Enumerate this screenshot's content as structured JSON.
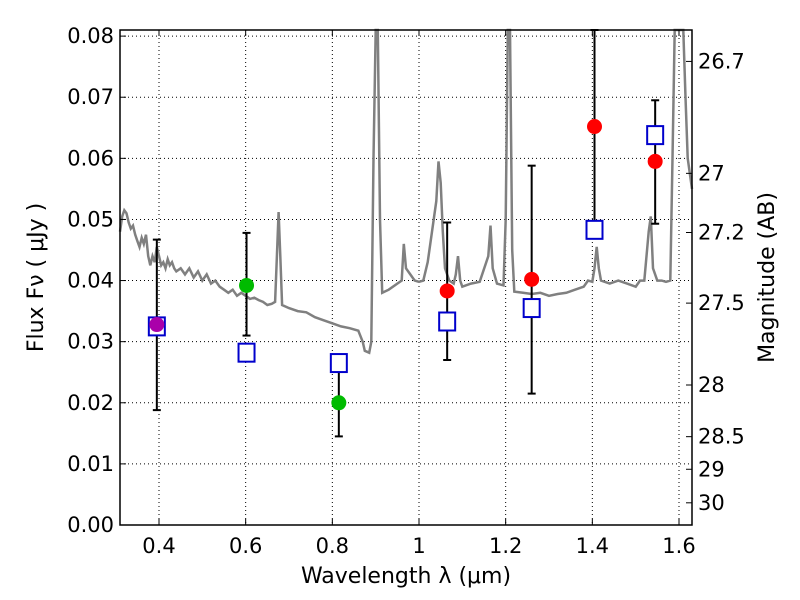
{
  "chart_data": {
    "type": "scatter",
    "xlabel": "Wavelength  λ (μm)",
    "ylabel": "Flux  Fν  ( μJy )",
    "y2label": "Magnitude (AB)",
    "xlim": [
      0.31,
      1.63
    ],
    "ylim": [
      0.0,
      0.081
    ],
    "grid": true,
    "x_ticks": [
      {
        "value": 0.4,
        "label": "0.4"
      },
      {
        "value": 0.6,
        "label": "0.6"
      },
      {
        "value": 0.8,
        "label": "0.8"
      },
      {
        "value": 1.0,
        "label": "1"
      },
      {
        "value": 1.2,
        "label": "1.2"
      },
      {
        "value": 1.4,
        "label": "1.4"
      },
      {
        "value": 1.6,
        "label": "1.6"
      }
    ],
    "y_ticks": [
      {
        "value": 0.0,
        "label": "0.00"
      },
      {
        "value": 0.01,
        "label": "0.01"
      },
      {
        "value": 0.02,
        "label": "0.02"
      },
      {
        "value": 0.03,
        "label": "0.03"
      },
      {
        "value": 0.04,
        "label": "0.04"
      },
      {
        "value": 0.05,
        "label": "0.05"
      },
      {
        "value": 0.06,
        "label": "0.06"
      },
      {
        "value": 0.07,
        "label": "0.07"
      },
      {
        "value": 0.08,
        "label": "0.08"
      }
    ],
    "y2_ticks": [
      {
        "value": 26.7,
        "label": "26.7"
      },
      {
        "value": 27.0,
        "label": "27"
      },
      {
        "value": 27.2,
        "label": "27.2"
      },
      {
        "value": 27.5,
        "label": "27.5"
      },
      {
        "value": 28.0,
        "label": "28"
      },
      {
        "value": 28.5,
        "label": "28.5"
      },
      {
        "value": 29.0,
        "label": "29"
      },
      {
        "value": 30.0,
        "label": "30"
      }
    ],
    "model_spectrum": {
      "color": "#808080",
      "points": [
        [
          0.31,
          0.048
        ],
        [
          0.315,
          0.0505
        ],
        [
          0.32,
          0.0515
        ],
        [
          0.325,
          0.051
        ],
        [
          0.33,
          0.0495
        ],
        [
          0.335,
          0.0485
        ],
        [
          0.34,
          0.049
        ],
        [
          0.345,
          0.0475
        ],
        [
          0.35,
          0.0465
        ],
        [
          0.355,
          0.0455
        ],
        [
          0.36,
          0.047
        ],
        [
          0.365,
          0.046
        ],
        [
          0.37,
          0.0475
        ],
        [
          0.375,
          0.044
        ],
        [
          0.38,
          0.0425
        ],
        [
          0.385,
          0.044
        ],
        [
          0.39,
          0.043
        ],
        [
          0.395,
          0.0455
        ],
        [
          0.4,
          0.044
        ],
        [
          0.405,
          0.0425
        ],
        [
          0.41,
          0.043
        ],
        [
          0.415,
          0.042
        ],
        [
          0.42,
          0.0435
        ],
        [
          0.425,
          0.0425
        ],
        [
          0.43,
          0.043
        ],
        [
          0.435,
          0.042
        ],
        [
          0.44,
          0.0415
        ],
        [
          0.45,
          0.042
        ],
        [
          0.46,
          0.041
        ],
        [
          0.47,
          0.042
        ],
        [
          0.48,
          0.0405
        ],
        [
          0.49,
          0.0415
        ],
        [
          0.5,
          0.04
        ],
        [
          0.51,
          0.041
        ],
        [
          0.52,
          0.0395
        ],
        [
          0.53,
          0.04
        ],
        [
          0.54,
          0.039
        ],
        [
          0.55,
          0.0385
        ],
        [
          0.56,
          0.038
        ],
        [
          0.57,
          0.0385
        ],
        [
          0.58,
          0.0375
        ],
        [
          0.59,
          0.038
        ],
        [
          0.6,
          0.0375
        ],
        [
          0.61,
          0.037
        ],
        [
          0.62,
          0.0372
        ],
        [
          0.63,
          0.0368
        ],
        [
          0.64,
          0.0365
        ],
        [
          0.65,
          0.036
        ],
        [
          0.66,
          0.0362
        ],
        [
          0.668,
          0.0365
        ],
        [
          0.672,
          0.044
        ],
        [
          0.676,
          0.0512
        ],
        [
          0.68,
          0.044
        ],
        [
          0.684,
          0.036
        ],
        [
          0.7,
          0.0355
        ],
        [
          0.72,
          0.035
        ],
        [
          0.74,
          0.0348
        ],
        [
          0.76,
          0.034
        ],
        [
          0.78,
          0.0335
        ],
        [
          0.8,
          0.033
        ],
        [
          0.82,
          0.0325
        ],
        [
          0.84,
          0.0322
        ],
        [
          0.86,
          0.0318
        ],
        [
          0.87,
          0.03
        ],
        [
          0.875,
          0.0285
        ],
        [
          0.885,
          0.0282
        ],
        [
          0.89,
          0.03
        ],
        [
          0.895,
          0.06
        ],
        [
          0.9,
          0.081
        ],
        [
          0.905,
          0.081
        ],
        [
          0.91,
          0.05
        ],
        [
          0.915,
          0.038
        ],
        [
          0.93,
          0.0385
        ],
        [
          0.95,
          0.0395
        ],
        [
          0.96,
          0.04
        ],
        [
          0.965,
          0.046
        ],
        [
          0.97,
          0.042
        ],
        [
          0.98,
          0.041
        ],
        [
          0.99,
          0.04
        ],
        [
          1.0,
          0.0398
        ],
        [
          1.01,
          0.04
        ],
        [
          1.02,
          0.043
        ],
        [
          1.03,
          0.048
        ],
        [
          1.04,
          0.053
        ],
        [
          1.045,
          0.0595
        ],
        [
          1.05,
          0.056
        ],
        [
          1.055,
          0.048
        ],
        [
          1.06,
          0.042
        ],
        [
          1.07,
          0.04
        ],
        [
          1.08,
          0.0395
        ],
        [
          1.085,
          0.041
        ],
        [
          1.09,
          0.044
        ],
        [
          1.095,
          0.04
        ],
        [
          1.1,
          0.039
        ],
        [
          1.12,
          0.0395
        ],
        [
          1.14,
          0.0398
        ],
        [
          1.16,
          0.044
        ],
        [
          1.165,
          0.049
        ],
        [
          1.17,
          0.042
        ],
        [
          1.18,
          0.0395
        ],
        [
          1.195,
          0.0392
        ],
        [
          1.2,
          0.05
        ],
        [
          1.205,
          0.081
        ],
        [
          1.21,
          0.081
        ],
        [
          1.215,
          0.045
        ],
        [
          1.22,
          0.0382
        ],
        [
          1.24,
          0.038
        ],
        [
          1.26,
          0.0378
        ],
        [
          1.28,
          0.038
        ],
        [
          1.3,
          0.0375
        ],
        [
          1.32,
          0.0378
        ],
        [
          1.34,
          0.038
        ],
        [
          1.36,
          0.0385
        ],
        [
          1.38,
          0.039
        ],
        [
          1.39,
          0.04
        ],
        [
          1.4,
          0.0398
        ],
        [
          1.405,
          0.042
        ],
        [
          1.41,
          0.0455
        ],
        [
          1.415,
          0.042
        ],
        [
          1.42,
          0.04
        ],
        [
          1.44,
          0.0395
        ],
        [
          1.46,
          0.04
        ],
        [
          1.48,
          0.0395
        ],
        [
          1.5,
          0.039
        ],
        [
          1.51,
          0.04
        ],
        [
          1.52,
          0.04
        ],
        [
          1.53,
          0.048
        ],
        [
          1.535,
          0.0505
        ],
        [
          1.54,
          0.042
        ],
        [
          1.55,
          0.04
        ],
        [
          1.56,
          0.04
        ],
        [
          1.57,
          0.0398
        ],
        [
          1.58,
          0.04
        ],
        [
          1.585,
          0.06
        ],
        [
          1.59,
          0.081
        ],
        [
          1.6,
          0.081
        ],
        [
          1.605,
          0.081
        ],
        [
          1.61,
          0.081
        ],
        [
          1.615,
          0.07
        ],
        [
          1.62,
          0.06
        ],
        [
          1.63,
          0.055
        ]
      ]
    },
    "series": [
      {
        "name": "observed",
        "marker": "circle",
        "points": [
          {
            "x": 0.395,
            "y": 0.0328,
            "err": [
              0.0188,
              0.0467
            ],
            "color": "#aa00aa"
          },
          {
            "x": 0.602,
            "y": 0.0392,
            "err": [
              0.031,
              0.0478
            ],
            "color": "#00bb00"
          },
          {
            "x": 0.815,
            "y": 0.02,
            "err": [
              0.0145,
              0.0252
            ],
            "color": "#00bb00"
          },
          {
            "x": 1.065,
            "y": 0.0383,
            "err": [
              0.027,
              0.0495
            ],
            "color": "#ff0000"
          },
          {
            "x": 1.26,
            "y": 0.0402,
            "err": [
              0.0215,
              0.0588
            ],
            "color": "#ff0000"
          },
          {
            "x": 1.405,
            "y": 0.0652,
            "err": [
              0.048,
              0.081
            ],
            "color": "#ff0000"
          },
          {
            "x": 1.545,
            "y": 0.0595,
            "err": [
              0.0493,
              0.0695
            ],
            "color": "#ff0000"
          }
        ]
      },
      {
        "name": "model_bandpass",
        "marker": "square",
        "color": "#0000cc",
        "points": [
          {
            "x": 0.395,
            "y": 0.0325
          },
          {
            "x": 0.602,
            "y": 0.0282
          },
          {
            "x": 0.815,
            "y": 0.0265
          },
          {
            "x": 1.065,
            "y": 0.0333
          },
          {
            "x": 1.26,
            "y": 0.0355
          },
          {
            "x": 1.405,
            "y": 0.0483
          },
          {
            "x": 1.545,
            "y": 0.0638
          }
        ]
      }
    ]
  }
}
